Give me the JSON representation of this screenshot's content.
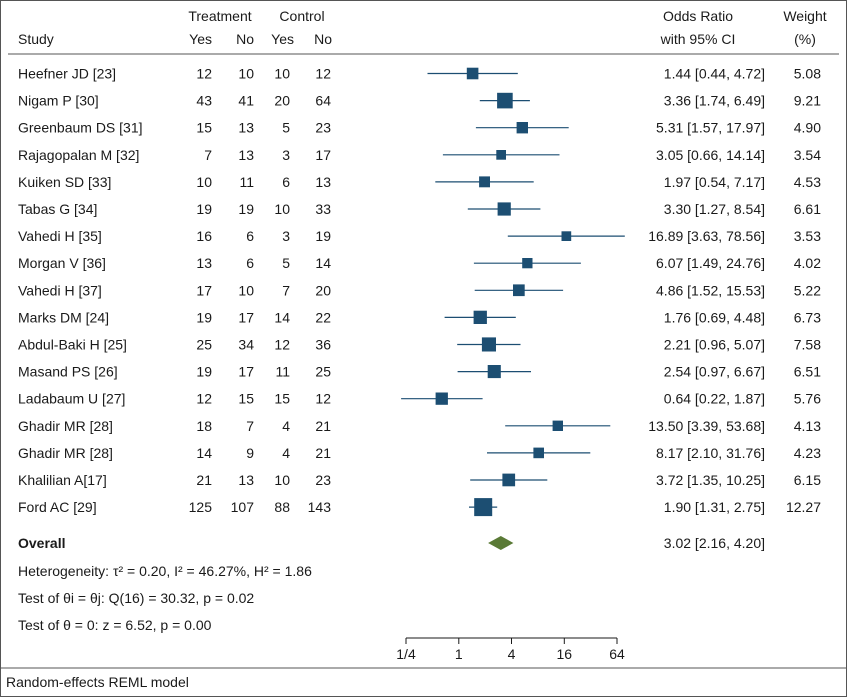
{
  "chart_data": {
    "type": "forest",
    "headers": {
      "study": "Study",
      "treatment": "Treatment",
      "control": "Control",
      "yes": "Yes",
      "no": "No",
      "or_line1": "Odds Ratio",
      "or_line2": "with 95% CI",
      "weight_line1": "Weight",
      "weight_line2": "(%)"
    },
    "studies": [
      {
        "name": "Heefner JD [23]",
        "t_yes": "12",
        "t_no": "10",
        "c_yes": "10",
        "c_no": "12",
        "or": 1.44,
        "lo": 0.44,
        "hi": 4.72,
        "or_text": "1.44 [0.44, 4.72]",
        "weight": 5.08,
        "weight_text": "5.08"
      },
      {
        "name": "Nigam P [30]",
        "t_yes": "43",
        "t_no": "41",
        "c_yes": "20",
        "c_no": "64",
        "or": 3.36,
        "lo": 1.74,
        "hi": 6.49,
        "or_text": "3.36 [1.74, 6.49]",
        "weight": 9.21,
        "weight_text": "9.21"
      },
      {
        "name": "Greenbaum DS [31]",
        "t_yes": "15",
        "t_no": "13",
        "c_yes": "5",
        "c_no": "23",
        "or": 5.31,
        "lo": 1.57,
        "hi": 17.97,
        "or_text": "5.31 [1.57, 17.97]",
        "weight": 4.9,
        "weight_text": "4.90"
      },
      {
        "name": "Rajagopalan M [32]",
        "t_yes": "7",
        "t_no": "13",
        "c_yes": "3",
        "c_no": "17",
        "or": 3.05,
        "lo": 0.66,
        "hi": 14.14,
        "or_text": "3.05 [0.66, 14.14]",
        "weight": 3.54,
        "weight_text": "3.54"
      },
      {
        "name": "Kuiken SD [33]",
        "t_yes": "10",
        "t_no": "11",
        "c_yes": "6",
        "c_no": "13",
        "or": 1.97,
        "lo": 0.54,
        "hi": 7.17,
        "or_text": "1.97 [0.54, 7.17]",
        "weight": 4.53,
        "weight_text": "4.53"
      },
      {
        "name": "Tabas G [34]",
        "t_yes": "19",
        "t_no": "19",
        "c_yes": "10",
        "c_no": "33",
        "or": 3.3,
        "lo": 1.27,
        "hi": 8.54,
        "or_text": "3.30 [1.27, 8.54]",
        "weight": 6.61,
        "weight_text": "6.61"
      },
      {
        "name": "Vahedi H [35]",
        "t_yes": "16",
        "t_no": "6",
        "c_yes": "3",
        "c_no": "19",
        "or": 16.89,
        "lo": 3.63,
        "hi": 78.56,
        "or_text": "16.89 [3.63, 78.56]",
        "weight": 3.53,
        "weight_text": "3.53"
      },
      {
        "name": "Morgan V [36]",
        "t_yes": "13",
        "t_no": "6",
        "c_yes": "5",
        "c_no": "14",
        "or": 6.07,
        "lo": 1.49,
        "hi": 24.76,
        "or_text": "6.07 [1.49, 24.76]",
        "weight": 4.02,
        "weight_text": "4.02"
      },
      {
        "name": "Vahedi H [37]",
        "t_yes": "17",
        "t_no": "10",
        "c_yes": "7",
        "c_no": "20",
        "or": 4.86,
        "lo": 1.52,
        "hi": 15.53,
        "or_text": "4.86 [1.52, 15.53]",
        "weight": 5.22,
        "weight_text": "5.22"
      },
      {
        "name": "Marks DM [24]",
        "t_yes": "19",
        "t_no": "17",
        "c_yes": "14",
        "c_no": "22",
        "or": 1.76,
        "lo": 0.69,
        "hi": 4.48,
        "or_text": "1.76 [0.69, 4.48]",
        "weight": 6.73,
        "weight_text": "6.73"
      },
      {
        "name": "Abdul-Baki H [25]",
        "t_yes": "25",
        "t_no": "34",
        "c_yes": "12",
        "c_no": "36",
        "or": 2.21,
        "lo": 0.96,
        "hi": 5.07,
        "or_text": "2.21 [0.96, 5.07]",
        "weight": 7.58,
        "weight_text": "7.58"
      },
      {
        "name": "Masand PS [26]",
        "t_yes": "19",
        "t_no": "17",
        "c_yes": "11",
        "c_no": "25",
        "or": 2.54,
        "lo": 0.97,
        "hi": 6.67,
        "or_text": "2.54 [0.97, 6.67]",
        "weight": 6.51,
        "weight_text": "6.51"
      },
      {
        "name": "Ladabaum U [27]",
        "t_yes": "12",
        "t_no": "15",
        "c_yes": "15",
        "c_no": "12",
        "or": 0.64,
        "lo": 0.22,
        "hi": 1.87,
        "or_text": "0.64 [0.22, 1.87]",
        "weight": 5.76,
        "weight_text": "5.76"
      },
      {
        "name": "Ghadir MR [28]",
        "t_yes": "18",
        "t_no": "7",
        "c_yes": "4",
        "c_no": "21",
        "or": 13.5,
        "lo": 3.39,
        "hi": 53.68,
        "or_text": "13.50 [3.39, 53.68]",
        "weight": 4.13,
        "weight_text": "4.13"
      },
      {
        "name": "Ghadir MR [28]",
        "t_yes": "14",
        "t_no": "9",
        "c_yes": "4",
        "c_no": "21",
        "or": 8.17,
        "lo": 2.1,
        "hi": 31.76,
        "or_text": "8.17 [2.10, 31.76]",
        "weight": 4.23,
        "weight_text": "4.23"
      },
      {
        "name": "Khalilian A[17]",
        "t_yes": "21",
        "t_no": "13",
        "c_yes": "10",
        "c_no": "23",
        "or": 3.72,
        "lo": 1.35,
        "hi": 10.25,
        "or_text": "3.72 [1.35, 10.25]",
        "weight": 6.15,
        "weight_text": "6.15"
      },
      {
        "name": "Ford AC [29]",
        "t_yes": "125",
        "t_no": "107",
        "c_yes": "88",
        "c_no": "143",
        "or": 1.9,
        "lo": 1.31,
        "hi": 2.75,
        "or_text": "1.90 [1.31, 2.75]",
        "weight": 12.27,
        "weight_text": "12.27"
      }
    ],
    "overall": {
      "label": "Overall",
      "or": 3.02,
      "lo": 2.16,
      "hi": 4.2,
      "or_text": "3.02 [2.16, 4.20]"
    },
    "stats": [
      "Heterogeneity: τ² = 0.20, I² = 46.27%, H² = 1.86",
      "Test of θi = θj: Q(16) = 30.32, p = 0.02",
      "Test of θ = 0: z = 6.52, p = 0.00"
    ],
    "x_axis": {
      "scale": "log",
      "ticks": [
        0.25,
        1,
        4,
        16,
        64
      ],
      "tick_labels": [
        "1/4",
        "1",
        "4",
        "16",
        "64"
      ],
      "range": [
        0.25,
        64
      ]
    },
    "footnote": "Random-effects REML model",
    "colors": {
      "box": "#1c4e72",
      "diamond": "#5a7a36",
      "text": "#1a1a1a",
      "border": "#555555"
    }
  }
}
